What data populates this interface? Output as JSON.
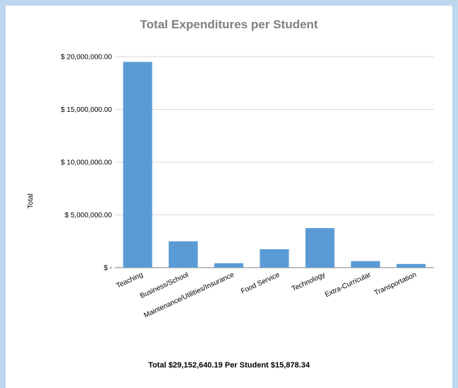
{
  "chart_data": {
    "type": "bar",
    "title": "Total Expenditures per Student",
    "ylabel": "Total",
    "xlabel": "",
    "categories": [
      "Teaching",
      "Business/School",
      "Maintenance/Utilities/Insurance",
      "Food Service",
      "Technology",
      "Extra-Curricular",
      "Transportation"
    ],
    "values": [
      19500000,
      2500000,
      420000,
      1750000,
      3750000,
      620000,
      350000
    ],
    "ylim": [
      0,
      20000000
    ],
    "yticks": [
      0,
      5000000,
      10000000,
      15000000,
      20000000
    ],
    "ytick_labels": [
      "$ -",
      "$ 5,000,000.00",
      "$ 10,000,000.00",
      "$ 15,000,000.00",
      "$ 20,000,000.00"
    ],
    "grid": true,
    "bar_color": "#5b9bd5",
    "footer": "Total $29,152,640.19  Per Student $15,878.34"
  }
}
